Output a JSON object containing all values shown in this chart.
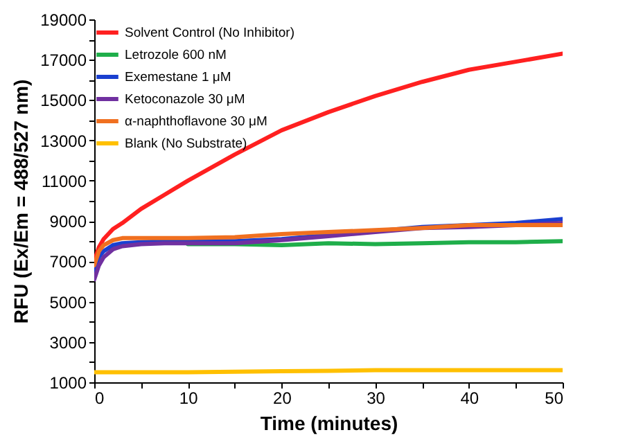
{
  "chart_data": {
    "type": "line",
    "xlabel": "Time (minutes)",
    "ylabel": "RFU (Ex/Em = 488/527 nm)",
    "xlim": [
      0,
      50
    ],
    "ylim": [
      1000,
      19000
    ],
    "xticks": [
      0,
      {
        "value": 5,
        "label": null
      },
      10,
      {
        "value": 15,
        "label": null
      },
      20,
      {
        "value": 25,
        "label": null
      },
      30,
      {
        "value": 35,
        "label": null
      },
      40,
      {
        "value": 45,
        "label": null
      },
      50
    ],
    "yticks": [
      1000,
      {
        "value": 2000,
        "label": null
      },
      3000,
      {
        "value": 4000,
        "label": null
      },
      5000,
      {
        "value": 6000,
        "label": null
      },
      7000,
      {
        "value": 8000,
        "label": null
      },
      9000,
      {
        "value": 10000,
        "label": null
      },
      11000,
      {
        "value": 12000,
        "label": null
      },
      13000,
      {
        "value": 14000,
        "label": null
      },
      15000,
      {
        "value": 16000,
        "label": null
      },
      17000,
      {
        "value": 18000,
        "label": null
      },
      19000
    ],
    "x": [
      0,
      0.5,
      1,
      2,
      3,
      5,
      7.5,
      10,
      15,
      20,
      25,
      30,
      35,
      40,
      45,
      50
    ],
    "grid": false,
    "legend": "top left",
    "marker": "none",
    "line_style": "solid",
    "series": [
      {
        "name": "Solvent Control (No Inhibitor)",
        "color": "#ff2020",
        "values": [
          7000,
          7700,
          8100,
          8600,
          8900,
          9600,
          10300,
          11000,
          12300,
          13500,
          14400,
          15200,
          15900,
          16500,
          16900,
          17300
        ]
      },
      {
        "name": "Letrozole 600 nM",
        "color": "#1fae4a",
        "values": [
          null,
          null,
          null,
          null,
          null,
          null,
          null,
          7850,
          7850,
          7800,
          7900,
          7850,
          7900,
          7950,
          7950,
          8000
        ]
      },
      {
        "name": "Exemestane 1 μM",
        "color": "#1a3fd0",
        "values": [
          6500,
          7200,
          7500,
          7800,
          7900,
          7950,
          8000,
          8000,
          8000,
          8100,
          8300,
          8500,
          8700,
          8800,
          8900,
          9100
        ]
      },
      {
        "name": "Ketoconazole 30 μM",
        "color": "#7030a0",
        "values": [
          6100,
          6800,
          7200,
          7600,
          7750,
          7850,
          7900,
          7900,
          7900,
          8050,
          8250,
          8450,
          8650,
          8700,
          8800,
          8900
        ]
      },
      {
        "name": "α-naphthoflavone 30 μM",
        "color": "#f07020",
        "values": [
          6800,
          7500,
          7800,
          8050,
          8150,
          8150,
          8150,
          8150,
          8200,
          8350,
          8450,
          8550,
          8650,
          8800,
          8800,
          8800
        ]
      },
      {
        "name": "Blank (No Substrate)",
        "color": "#ffc000",
        "values": [
          1500,
          1500,
          1500,
          1500,
          1500,
          1500,
          1500,
          1500,
          1520,
          1550,
          1570,
          1600,
          1600,
          1600,
          1600,
          1600
        ]
      }
    ]
  }
}
